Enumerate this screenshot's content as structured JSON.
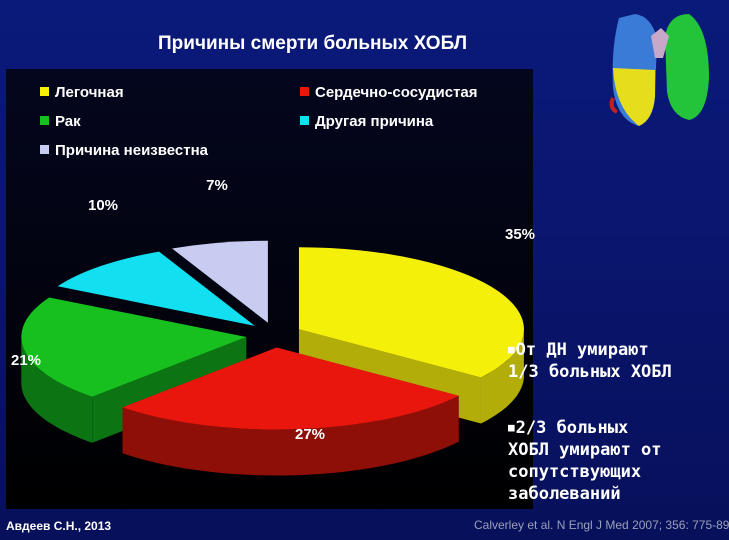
{
  "slide": {
    "title": "Причины смерти больных ХОБЛ",
    "author": "Авдеев С.Н., 2013",
    "source": "Calverley et al. N Engl J Med 2007; 356: 775-89"
  },
  "bullets": [
    {
      "lines": [
        "От ДН умирают",
        "1/3 больных ХОБЛ"
      ]
    },
    {
      "lines": [
        "2/3 больных",
        "ХОБЛ умирают от",
        "сопутствующих",
        "заболеваний"
      ]
    }
  ],
  "chart_data": {
    "type": "pie",
    "title": "",
    "legend_position": "top",
    "slices": [
      {
        "label": "Легочная",
        "value": 35,
        "value_label": "35%",
        "color": "#f5f00a",
        "side": "#b3ad0a"
      },
      {
        "label": "Сердечно-сосудистая",
        "value": 27,
        "value_label": "27%",
        "color": "#e8160c",
        "side": "#8e0f08"
      },
      {
        "label": "Рак",
        "value": 21,
        "value_label": "21%",
        "color": "#17c01f",
        "side": "#0c7412"
      },
      {
        "label": "Другая причина",
        "value": 10,
        "value_label": "10%",
        "color": "#12e0f0",
        "side": "#0a8c97"
      },
      {
        "label": "Причина неизвестна",
        "value": 7,
        "value_label": "7%",
        "color": "#c8ccf0",
        "side": "#7d82a8"
      }
    ]
  }
}
